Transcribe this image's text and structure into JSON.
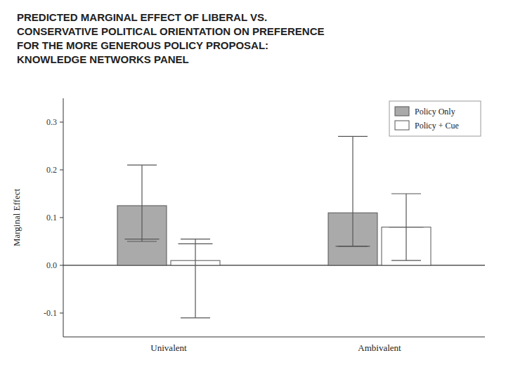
{
  "chart_data": {
    "type": "bar",
    "title": "PREDICTED MARGINAL EFFECT OF LIBERAL VS.\nCONSERVATIVE POLITICAL ORIENTATION ON PREFERENCE\nFOR THE MORE GENEROUS POLICY PROPOSAL:\nKNOWLEDGE NETWORKS PANEL",
    "y_label": "Marginal Effect",
    "categories": [
      "Univalent",
      "Ambivalent"
    ],
    "series": [
      {
        "name": "Policy Only",
        "color": "#aaaaaa",
        "values": [
          0.125,
          0.11
        ],
        "ci_low": [
          0.05,
          0.04
        ],
        "ci_high": [
          0.21,
          0.27
        ],
        "center_mark": [
          0.055,
          0.04
        ]
      },
      {
        "name": "Policy + Cue",
        "color": "#ffffff",
        "values": [
          0.01,
          0.08
        ],
        "ci_low": [
          -0.11,
          0.01
        ],
        "ci_high": [
          0.055,
          0.15
        ],
        "center_mark": [
          0.045,
          0.08
        ]
      }
    ],
    "ylim": [
      -0.15,
      0.35
    ],
    "yticks": [
      -0.1,
      {
        "value": 0.0,
        "label": "0.0"
      },
      0.1,
      0.2,
      0.3
    ],
    "legend": "upper right"
  }
}
